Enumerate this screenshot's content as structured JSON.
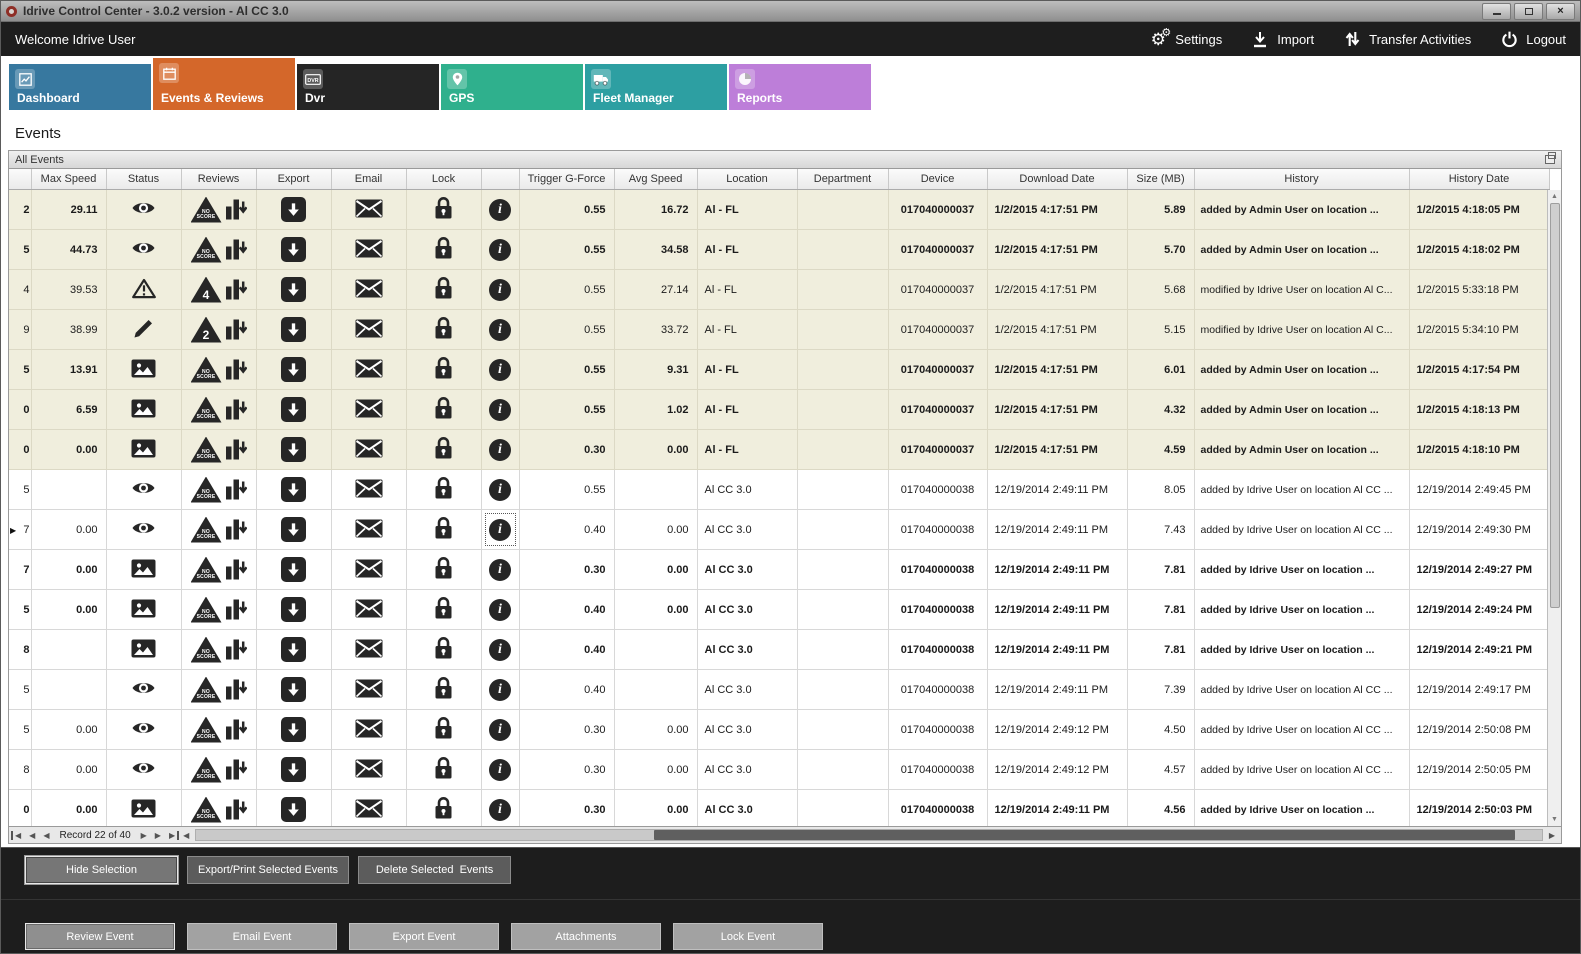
{
  "window": {
    "title": "Idrive Control Center - 3.0.2 version - Al CC 3.0"
  },
  "topbar": {
    "welcome": "Welcome Idrive User",
    "actions": [
      {
        "label": "Settings",
        "icon": "gears"
      },
      {
        "label": "Import",
        "icon": "import"
      },
      {
        "label": "Transfer Activities",
        "icon": "transfer"
      },
      {
        "label": "Logout",
        "icon": "power"
      }
    ]
  },
  "tabs": [
    {
      "label": "Dashboard",
      "color": "#37789f",
      "icon": "dashboard",
      "active": false
    },
    {
      "label": "Events & Reviews",
      "color": "#d4672a",
      "icon": "events",
      "active": true
    },
    {
      "label": "Dvr",
      "color": "#252525",
      "icon": "dvr",
      "active": false
    },
    {
      "label": "GPS",
      "color": "#2fb08d",
      "icon": "gps",
      "active": false
    },
    {
      "label": "Fleet Manager",
      "color": "#2d9fa2",
      "icon": "fleet",
      "active": false
    },
    {
      "label": "Reports",
      "color": "#bd7ed9",
      "icon": "reports",
      "active": false
    }
  ],
  "page": {
    "title": "Events",
    "panel_title": "All Events"
  },
  "grid": {
    "columns": [
      "",
      "Max Speed",
      "Status",
      "Reviews",
      "Export",
      "Email",
      "Lock",
      "",
      "Trigger G-Force",
      "Avg Speed",
      "Location",
      "Department",
      "Device",
      "Download Date",
      "Size (MB)",
      "History",
      "History Date"
    ],
    "rows": [
      {
        "frag": "2",
        "max": "29.11",
        "status": "eye",
        "review": "noscore",
        "gforce": "0.55",
        "avg": "16.72",
        "loc": "Al - FL",
        "dept": "",
        "device": "017040000037",
        "dl": "1/2/2015 4:17:51 PM",
        "size": "5.89",
        "hist": "added by Admin User on location ...",
        "hdate": "1/2/2015 4:18:05 PM",
        "bold": true,
        "tint": true,
        "current": false,
        "sel": false
      },
      {
        "frag": "5",
        "max": "44.73",
        "status": "eye",
        "review": "noscore",
        "gforce": "0.55",
        "avg": "34.58",
        "loc": "Al - FL",
        "dept": "",
        "device": "017040000037",
        "dl": "1/2/2015 4:17:51 PM",
        "size": "5.70",
        "hist": "added by Admin User on location ...",
        "hdate": "1/2/2015 4:18:02 PM",
        "bold": true,
        "tint": true,
        "current": false,
        "sel": false
      },
      {
        "frag": "4",
        "max": "39.53",
        "status": "warning",
        "review": "4",
        "gforce": "0.55",
        "avg": "27.14",
        "loc": "Al - FL",
        "dept": "",
        "device": "017040000037",
        "dl": "1/2/2015 4:17:51 PM",
        "size": "5.68",
        "hist": "modified by Idrive User on location Al C...",
        "hdate": "1/2/2015 5:33:18 PM",
        "bold": false,
        "tint": true,
        "current": false,
        "sel": false
      },
      {
        "frag": "9",
        "max": "38.99",
        "status": "pencil",
        "review": "2",
        "gforce": "0.55",
        "avg": "33.72",
        "loc": "Al - FL",
        "dept": "",
        "device": "017040000037",
        "dl": "1/2/2015 4:17:51 PM",
        "size": "5.15",
        "hist": "modified by Idrive User on location Al C...",
        "hdate": "1/2/2015 5:34:10 PM",
        "bold": false,
        "tint": true,
        "current": false,
        "sel": false
      },
      {
        "frag": "5",
        "max": "13.91",
        "status": "image",
        "review": "noscore",
        "gforce": "0.55",
        "avg": "9.31",
        "loc": "Al - FL",
        "dept": "",
        "device": "017040000037",
        "dl": "1/2/2015 4:17:51 PM",
        "size": "6.01",
        "hist": "added by Admin User on location ...",
        "hdate": "1/2/2015 4:17:54 PM",
        "bold": true,
        "tint": true,
        "current": false,
        "sel": false
      },
      {
        "frag": "0",
        "max": "6.59",
        "status": "image",
        "review": "noscore",
        "gforce": "0.55",
        "avg": "1.02",
        "loc": "Al - FL",
        "dept": "",
        "device": "017040000037",
        "dl": "1/2/2015 4:17:51 PM",
        "size": "4.32",
        "hist": "added by Admin User on location ...",
        "hdate": "1/2/2015 4:18:13 PM",
        "bold": true,
        "tint": true,
        "current": false,
        "sel": false
      },
      {
        "frag": "0",
        "max": "0.00",
        "status": "image",
        "review": "noscore",
        "gforce": "0.30",
        "avg": "0.00",
        "loc": "Al - FL",
        "dept": "",
        "device": "017040000037",
        "dl": "1/2/2015 4:17:51 PM",
        "size": "4.59",
        "hist": "added by Admin User on location ...",
        "hdate": "1/2/2015 4:18:10 PM",
        "bold": true,
        "tint": true,
        "current": false,
        "sel": false
      },
      {
        "frag": "5",
        "max": "",
        "status": "eye",
        "review": "noscore",
        "gforce": "0.55",
        "avg": "",
        "loc": "Al CC 3.0",
        "dept": "",
        "device": "017040000038",
        "dl": "12/19/2014 2:49:11 PM",
        "size": "8.05",
        "hist": "added by Idrive User on location Al CC ...",
        "hdate": "12/19/2014 2:49:45 PM",
        "bold": false,
        "tint": false,
        "current": false,
        "sel": false
      },
      {
        "frag": "7",
        "max": "0.00",
        "status": "eye",
        "review": "noscore",
        "gforce": "0.40",
        "avg": "0.00",
        "loc": "Al CC 3.0",
        "dept": "",
        "device": "017040000038",
        "dl": "12/19/2014 2:49:11 PM",
        "size": "7.43",
        "hist": "added by Idrive User on location Al CC ...",
        "hdate": "12/19/2014 2:49:30 PM",
        "bold": false,
        "tint": false,
        "current": true,
        "sel": true
      },
      {
        "frag": "7",
        "max": "0.00",
        "status": "image",
        "review": "noscore",
        "gforce": "0.30",
        "avg": "0.00",
        "loc": "Al CC 3.0",
        "dept": "",
        "device": "017040000038",
        "dl": "12/19/2014 2:49:11 PM",
        "size": "7.81",
        "hist": "added by Idrive User on location ...",
        "hdate": "12/19/2014 2:49:27 PM",
        "bold": true,
        "tint": false,
        "current": false,
        "sel": false
      },
      {
        "frag": "5",
        "max": "0.00",
        "status": "image",
        "review": "noscore",
        "gforce": "0.40",
        "avg": "0.00",
        "loc": "Al CC 3.0",
        "dept": "",
        "device": "017040000038",
        "dl": "12/19/2014 2:49:11 PM",
        "size": "7.81",
        "hist": "added by Idrive User on location ...",
        "hdate": "12/19/2014 2:49:24 PM",
        "bold": true,
        "tint": false,
        "current": false,
        "sel": false
      },
      {
        "frag": "8",
        "max": "",
        "status": "image",
        "review": "noscore",
        "gforce": "0.40",
        "avg": "",
        "loc": "Al CC 3.0",
        "dept": "",
        "device": "017040000038",
        "dl": "12/19/2014 2:49:11 PM",
        "size": "7.81",
        "hist": "added by Idrive User on location ...",
        "hdate": "12/19/2014 2:49:21 PM",
        "bold": true,
        "tint": false,
        "current": false,
        "sel": false
      },
      {
        "frag": "5",
        "max": "",
        "status": "eye",
        "review": "noscore",
        "gforce": "0.40",
        "avg": "",
        "loc": "Al CC 3.0",
        "dept": "",
        "device": "017040000038",
        "dl": "12/19/2014 2:49:11 PM",
        "size": "7.39",
        "hist": "added by Idrive User on location Al CC ...",
        "hdate": "12/19/2014 2:49:17 PM",
        "bold": false,
        "tint": false,
        "current": false,
        "sel": false
      },
      {
        "frag": "5",
        "max": "0.00",
        "status": "eye",
        "review": "noscore",
        "gforce": "0.30",
        "avg": "0.00",
        "loc": "Al CC 3.0",
        "dept": "",
        "device": "017040000038",
        "dl": "12/19/2014 2:49:12 PM",
        "size": "4.50",
        "hist": "added by Idrive User on location Al CC ...",
        "hdate": "12/19/2014 2:50:08 PM",
        "bold": false,
        "tint": false,
        "current": false,
        "sel": false
      },
      {
        "frag": "8",
        "max": "0.00",
        "status": "eye",
        "review": "noscore",
        "gforce": "0.30",
        "avg": "0.00",
        "loc": "Al CC 3.0",
        "dept": "",
        "device": "017040000038",
        "dl": "12/19/2014 2:49:12 PM",
        "size": "4.57",
        "hist": "added by Idrive User on location Al CC ...",
        "hdate": "12/19/2014 2:50:05 PM",
        "bold": false,
        "tint": false,
        "current": false,
        "sel": false
      },
      {
        "frag": "0",
        "max": "0.00",
        "status": "image",
        "review": "noscore",
        "gforce": "0.30",
        "avg": "0.00",
        "loc": "Al CC 3.0",
        "dept": "",
        "device": "017040000038",
        "dl": "12/19/2014 2:49:11 PM",
        "size": "4.56",
        "hist": "added by Idrive User on location ...",
        "hdate": "12/19/2014 2:50:03 PM",
        "bold": true,
        "tint": false,
        "current": false,
        "sel": false
      }
    ]
  },
  "record_nav": {
    "text": "Record 22 of 40"
  },
  "actions": {
    "selection": [
      "Hide Selection",
      "Export/Print Selected Events",
      "Delete Selected  Events"
    ],
    "event": [
      "Review Event",
      "Email Event",
      "Export Event",
      "Attachments",
      "Lock Event"
    ]
  },
  "colors": {
    "tint_row": "#f0eedd",
    "panel_bg": "#1d1d1d",
    "accent_orange": "#d4672a"
  }
}
